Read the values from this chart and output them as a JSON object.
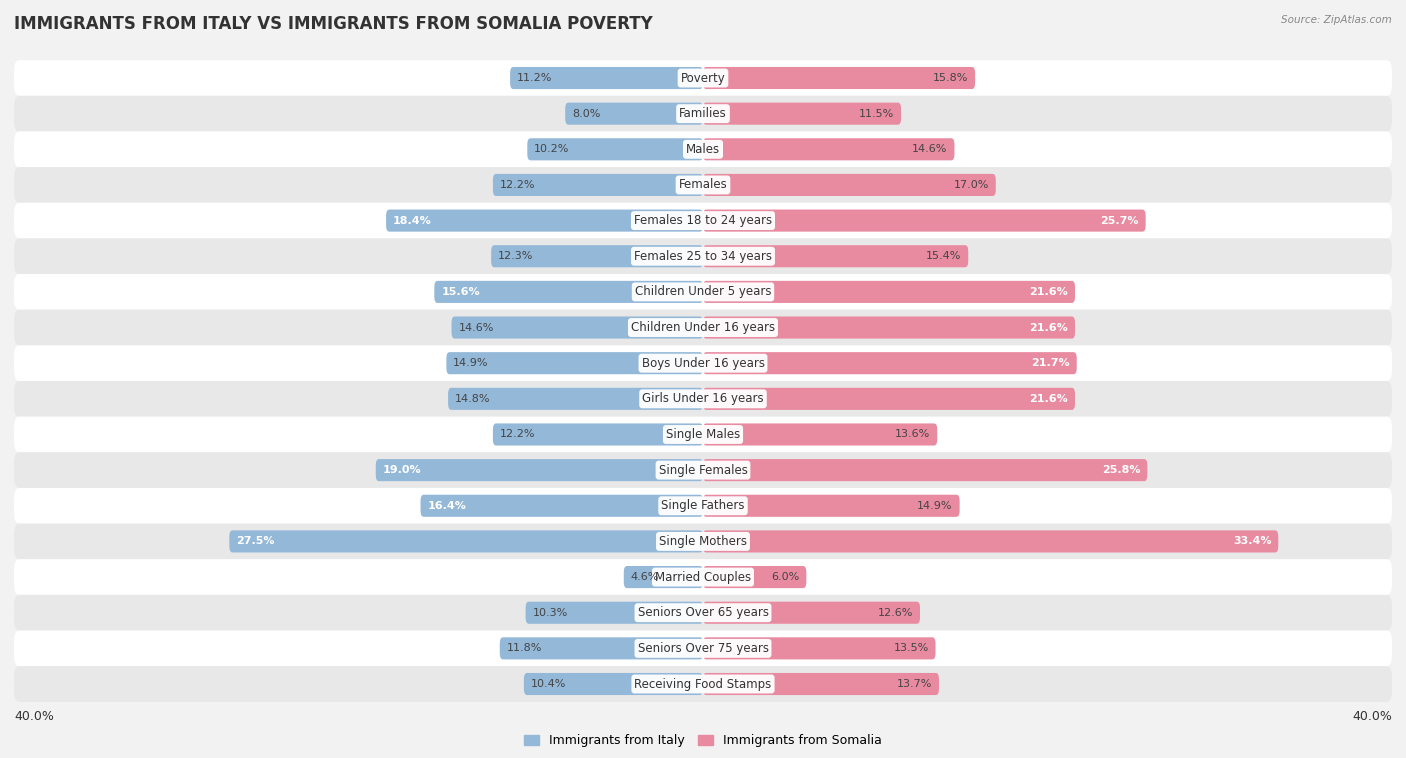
{
  "title": "IMMIGRANTS FROM ITALY VS IMMIGRANTS FROM SOMALIA POVERTY",
  "source": "Source: ZipAtlas.com",
  "categories": [
    "Poverty",
    "Families",
    "Males",
    "Females",
    "Females 18 to 24 years",
    "Females 25 to 34 years",
    "Children Under 5 years",
    "Children Under 16 years",
    "Boys Under 16 years",
    "Girls Under 16 years",
    "Single Males",
    "Single Females",
    "Single Fathers",
    "Single Mothers",
    "Married Couples",
    "Seniors Over 65 years",
    "Seniors Over 75 years",
    "Receiving Food Stamps"
  ],
  "italy_values": [
    11.2,
    8.0,
    10.2,
    12.2,
    18.4,
    12.3,
    15.6,
    14.6,
    14.9,
    14.8,
    12.2,
    19.0,
    16.4,
    27.5,
    4.6,
    10.3,
    11.8,
    10.4
  ],
  "somalia_values": [
    15.8,
    11.5,
    14.6,
    17.0,
    25.7,
    15.4,
    21.6,
    21.6,
    21.7,
    21.6,
    13.6,
    25.8,
    14.9,
    33.4,
    6.0,
    12.6,
    13.5,
    13.7
  ],
  "italy_color": "#94b8d8",
  "somalia_color": "#e88aa0",
  "background_color": "#f2f2f2",
  "row_color_light": "#ffffff",
  "row_color_dark": "#e8e8e8",
  "axis_max": 40.0,
  "legend_italy": "Immigrants from Italy",
  "legend_somalia": "Immigrants from Somalia",
  "title_fontsize": 12,
  "label_fontsize": 8.5,
  "value_fontsize": 8.0,
  "inside_label_threshold_italy": 15.0,
  "inside_label_threshold_somalia": 20.0
}
